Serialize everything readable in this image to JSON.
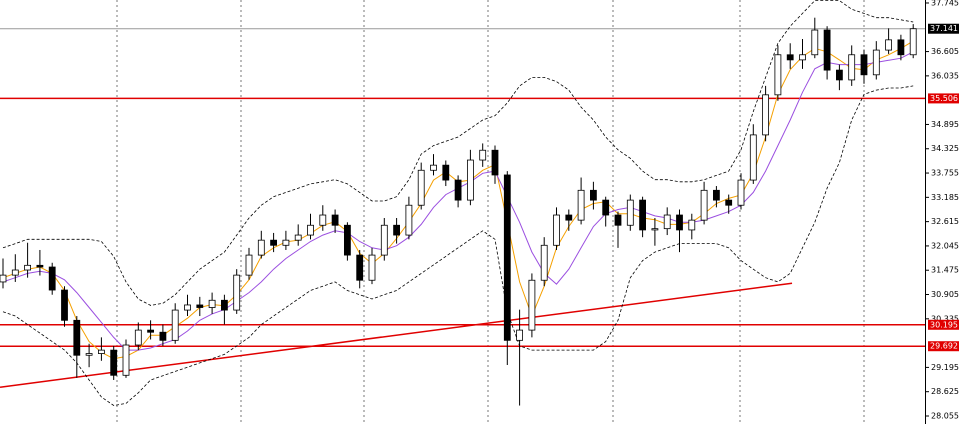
{
  "chart_data": {
    "type": "candlestick",
    "ylim": [
      27.867,
      37.815
    ],
    "yticks": [
      37.745,
      36.605,
      36.035,
      34.895,
      34.325,
      33.755,
      33.185,
      32.615,
      32.045,
      31.475,
      30.905,
      30.335,
      29.195,
      28.625,
      28.055
    ],
    "up_color": "#ffffff",
    "down_color": "#000000",
    "ohlc": {
      "open": [
        31.2,
        31.36,
        31.48,
        31.59,
        31.55,
        31.01,
        30.3,
        29.48,
        29.52,
        29.6,
        29.01,
        29.72,
        30.07,
        30.02,
        29.83,
        30.54,
        30.66,
        30.6,
        30.77,
        30.54,
        31.36,
        31.83,
        32.18,
        32.06,
        32.18,
        32.3,
        32.53,
        32.77,
        32.53,
        31.83,
        31.24,
        31.83,
        32.53,
        32.3,
        33.0,
        33.82,
        33.94,
        33.59,
        33.12,
        34.06,
        34.29,
        33.71,
        29.83,
        30.07,
        31.24,
        32.06,
        32.77,
        32.65,
        33.35,
        33.12,
        32.77,
        32.53,
        33.12,
        32.42,
        32.45,
        32.77,
        32.42,
        32.65,
        33.35,
        33.12,
        33.0,
        33.59,
        34.65,
        35.59,
        36.53,
        36.41,
        36.53,
        37.11,
        36.17,
        35.94,
        36.53,
        36.06,
        36.64,
        36.88,
        36.53
      ],
      "high": [
        31.75,
        31.85,
        32.12,
        31.95,
        31.65,
        31.1,
        30.4,
        29.75,
        29.9,
        29.7,
        29.85,
        30.25,
        30.3,
        30.2,
        30.7,
        30.9,
        30.85,
        30.95,
        30.9,
        31.5,
        32.0,
        32.4,
        32.35,
        32.4,
        32.55,
        32.8,
        33.0,
        32.9,
        32.6,
        31.95,
        32.0,
        32.7,
        32.7,
        33.2,
        34.0,
        34.2,
        34.05,
        33.7,
        34.3,
        34.45,
        34.4,
        33.8,
        30.55,
        31.4,
        32.25,
        32.95,
        32.9,
        33.65,
        33.55,
        33.2,
        32.85,
        33.25,
        33.2,
        32.7,
        32.95,
        32.9,
        32.8,
        33.55,
        33.45,
        33.25,
        33.75,
        34.9,
        35.8,
        36.75,
        36.8,
        36.9,
        37.4,
        37.2,
        36.3,
        36.75,
        36.65,
        36.85,
        37.15,
        37.0,
        37.25
      ],
      "low": [
        31.05,
        31.2,
        31.3,
        31.35,
        30.9,
        30.15,
        28.95,
        29.2,
        29.35,
        28.9,
        28.95,
        29.6,
        29.85,
        29.7,
        29.75,
        30.4,
        30.4,
        30.45,
        30.2,
        30.45,
        31.25,
        31.75,
        31.9,
        31.95,
        32.05,
        32.2,
        32.4,
        32.35,
        31.7,
        31.05,
        31.15,
        31.7,
        32.1,
        32.2,
        32.9,
        33.7,
        33.45,
        32.95,
        33.0,
        33.9,
        33.5,
        29.25,
        28.3,
        29.9,
        31.1,
        31.95,
        32.4,
        32.55,
        32.9,
        32.5,
        32.0,
        32.4,
        32.25,
        32.05,
        32.3,
        31.9,
        32.2,
        32.55,
        32.95,
        32.8,
        32.9,
        33.5,
        34.5,
        35.45,
        36.2,
        36.2,
        36.45,
        35.95,
        35.7,
        35.8,
        35.85,
        35.95,
        36.55,
        36.4,
        36.45
      ],
      "close": [
        31.36,
        31.48,
        31.59,
        31.55,
        31.01,
        30.3,
        29.48,
        29.52,
        29.6,
        29.01,
        29.72,
        30.07,
        30.02,
        29.83,
        30.54,
        30.66,
        30.6,
        30.77,
        30.54,
        31.36,
        31.83,
        32.18,
        32.06,
        32.18,
        32.3,
        32.53,
        32.77,
        32.53,
        31.83,
        31.24,
        31.83,
        32.53,
        32.3,
        33.0,
        33.82,
        33.94,
        33.59,
        33.12,
        34.06,
        34.29,
        33.71,
        29.83,
        30.07,
        31.24,
        32.06,
        32.77,
        32.65,
        33.35,
        33.12,
        32.77,
        32.53,
        33.12,
        32.42,
        32.45,
        32.77,
        32.42,
        32.65,
        33.35,
        33.12,
        33.0,
        33.59,
        34.65,
        35.59,
        36.53,
        36.41,
        36.53,
        37.11,
        36.17,
        35.94,
        36.53,
        36.06,
        36.64,
        36.88,
        36.53,
        37.141
      ]
    },
    "last_price": {
      "color": "#999999",
      "label_bg": "#000000"
    },
    "lines": [
      {
        "color": "#f5a000",
        "style": "solid",
        "values": [
          31.3,
          31.4,
          31.5,
          31.55,
          31.4,
          31.0,
          30.3,
          29.8,
          29.55,
          29.4,
          29.45,
          29.6,
          29.95,
          29.95,
          30.15,
          30.35,
          30.6,
          30.67,
          30.64,
          30.9,
          31.25,
          31.8,
          32.0,
          32.14,
          32.18,
          32.34,
          32.53,
          32.61,
          32.38,
          31.87,
          31.63,
          31.87,
          32.22,
          32.61,
          33.04,
          33.59,
          33.78,
          33.55,
          33.59,
          33.82,
          33.95,
          32.6,
          31.2,
          30.4,
          31.1,
          32.0,
          32.5,
          32.9,
          33.04,
          33.08,
          32.8,
          32.8,
          32.7,
          32.66,
          32.55,
          32.55,
          32.6,
          32.8,
          33.04,
          33.16,
          33.24,
          33.75,
          34.6,
          35.6,
          36.18,
          36.49,
          36.68,
          36.6,
          36.41,
          36.21,
          36.18,
          36.41,
          36.53,
          36.68,
          36.85
        ]
      },
      {
        "color": "#9b4fe0",
        "style": "solid",
        "values": [
          31.2,
          31.3,
          31.4,
          31.45,
          31.4,
          31.25,
          30.95,
          30.6,
          30.25,
          29.9,
          29.6,
          29.6,
          29.65,
          29.75,
          29.85,
          30.05,
          30.3,
          30.45,
          30.55,
          30.75,
          30.95,
          31.2,
          31.5,
          31.75,
          31.95,
          32.15,
          32.3,
          32.4,
          32.35,
          32.15,
          32.0,
          31.95,
          32.05,
          32.25,
          32.55,
          32.95,
          33.25,
          33.4,
          33.55,
          33.75,
          33.8,
          33.2,
          32.6,
          31.9,
          31.4,
          31.15,
          31.5,
          32.0,
          32.5,
          32.8,
          32.9,
          32.95,
          32.85,
          32.75,
          32.7,
          32.6,
          32.6,
          32.65,
          32.75,
          32.85,
          33.0,
          33.3,
          33.8,
          34.4,
          35.0,
          35.65,
          36.2,
          36.35,
          36.3,
          36.3,
          36.3,
          36.35,
          36.4,
          36.45,
          36.6
        ]
      },
      {
        "color": "#000000",
        "style": "dashed",
        "values": [
          32.0,
          32.1,
          32.2,
          32.2,
          32.2,
          32.2,
          32.2,
          32.2,
          32.15,
          31.8,
          31.2,
          30.8,
          30.65,
          30.7,
          30.9,
          31.2,
          31.5,
          31.7,
          31.9,
          32.3,
          32.7,
          33.0,
          33.2,
          33.3,
          33.4,
          33.5,
          33.55,
          33.6,
          33.5,
          33.3,
          33.1,
          33.1,
          33.2,
          33.6,
          34.2,
          34.4,
          34.5,
          34.6,
          34.8,
          35.0,
          35.1,
          35.4,
          35.8,
          36.0,
          36.0,
          35.9,
          35.7,
          35.3,
          35.0,
          34.6,
          34.3,
          34.1,
          33.8,
          33.6,
          33.6,
          33.55,
          33.55,
          33.6,
          33.7,
          33.8,
          34.3,
          35.2,
          36.0,
          36.8,
          37.2,
          37.5,
          37.8,
          37.8,
          37.8,
          37.6,
          37.5,
          37.4,
          37.4,
          37.35,
          37.3
        ]
      },
      {
        "color": "#000000",
        "style": "dashed",
        "values": [
          30.5,
          30.4,
          30.2,
          30.0,
          29.8,
          29.6,
          29.3,
          28.9,
          28.5,
          28.3,
          28.35,
          28.6,
          28.9,
          29.0,
          29.1,
          29.2,
          29.3,
          29.4,
          29.5,
          29.7,
          29.9,
          30.2,
          30.4,
          30.6,
          30.8,
          31.0,
          31.1,
          31.2,
          31.0,
          30.9,
          30.8,
          30.9,
          31.0,
          31.2,
          31.4,
          31.6,
          31.8,
          32.0,
          32.2,
          32.4,
          32.2,
          30.5,
          29.7,
          29.6,
          29.6,
          29.6,
          29.6,
          29.6,
          29.6,
          29.8,
          30.3,
          31.3,
          31.7,
          31.9,
          32.0,
          32.1,
          32.1,
          32.1,
          32.1,
          32.0,
          31.7,
          31.5,
          31.3,
          31.2,
          31.4,
          32.0,
          32.6,
          33.4,
          34.0,
          35.0,
          35.6,
          35.7,
          35.75,
          35.75,
          35.8
        ]
      }
    ],
    "levels": [
      {
        "value": 35.506,
        "color": "#e00000"
      },
      {
        "value": 30.195,
        "color": "#e00000"
      },
      {
        "value": 29.692,
        "color": "#e00000"
      }
    ],
    "trendline": {
      "x": [
        -0.24,
        64.15
      ],
      "y": [
        28.73,
        31.17
      ],
      "color": "#e00000"
    }
  }
}
